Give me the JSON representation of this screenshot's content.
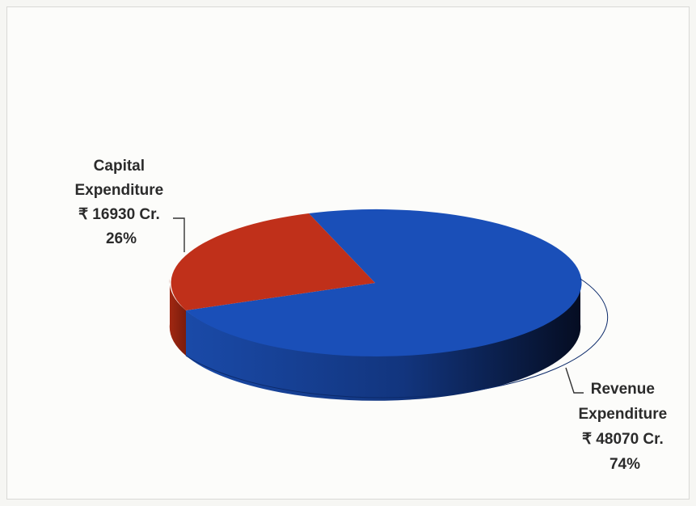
{
  "chart_data": {
    "type": "pie",
    "style": "3d",
    "title": "",
    "currency_symbol": "₹",
    "slices": [
      {
        "label_lines": [
          "Capital",
          "Expenditure",
          "₹ 16930 Cr.",
          "26%"
        ],
        "category": "Capital Expenditure",
        "value": 16930,
        "unit": "Cr.",
        "percent": 26,
        "color": "#c0301a",
        "side_color": "#8e2410"
      },
      {
        "label_lines": [
          "Revenue",
          "Expenditure",
          "₹ 48070 Cr.",
          "74%"
        ],
        "category": "Revenue Expenditure",
        "value": 48070,
        "unit": "Cr.",
        "percent": 74,
        "color": "#1a4fb8",
        "side_color": "#0f2f78"
      }
    ]
  }
}
